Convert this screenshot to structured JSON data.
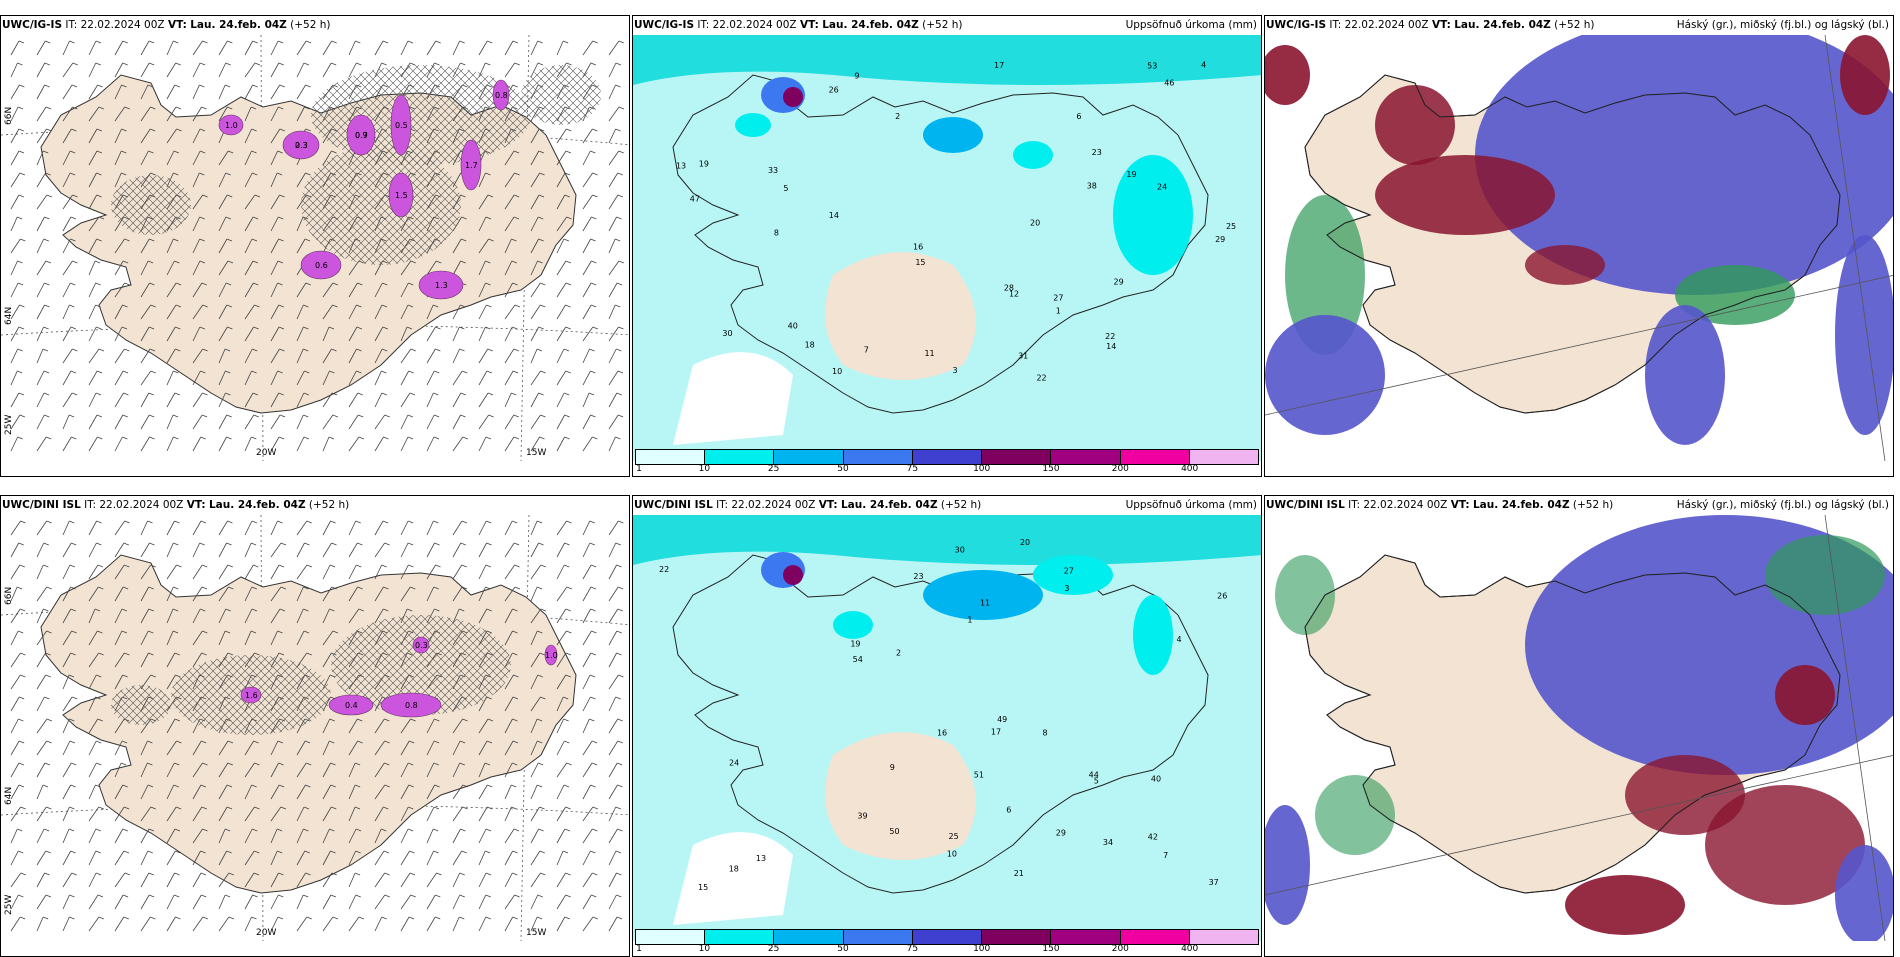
{
  "panels": [
    {
      "id": "p1",
      "model": "UWC/IG-IS",
      "it": "IT: 22.02.2024 00Z",
      "vt_label": "VT:",
      "vt": "Lau. 24.feb. 04Z",
      "lead": "(+52 h)",
      "right_title": ""
    },
    {
      "id": "p2",
      "model": "UWC/IG-IS",
      "it": "IT: 22.02.2024 00Z",
      "vt_label": "VT:",
      "vt": "Lau. 24.feb. 04Z",
      "lead": "(+52 h)",
      "right_title": "Uppsöfnuð úrkoma (mm)"
    },
    {
      "id": "p3",
      "model": "UWC/IG-IS",
      "it": "IT: 22.02.2024 00Z",
      "vt_label": "VT:",
      "vt": "Lau. 24.feb. 04Z",
      "lead": "(+52 h)",
      "right_title": "Háský (gr.), miðský (fj.bl.) og lágský (bl.)"
    },
    {
      "id": "p4",
      "model": "UWC/DINI ISL",
      "it": "IT: 22.02.2024 00Z",
      "vt_label": "VT:",
      "vt": "Lau. 24.feb. 04Z",
      "lead": "(+52 h)",
      "right_title": ""
    },
    {
      "id": "p5",
      "model": "UWC/DINI ISL",
      "it": "IT: 22.02.2024 00Z",
      "vt_label": "VT:",
      "vt": "Lau. 24.feb. 04Z",
      "lead": "(+52 h)",
      "right_title": "Uppsöfnuð úrkoma (mm)"
    },
    {
      "id": "p6",
      "model": "UWC/DINI ISL",
      "it": "IT: 22.02.2024 00Z",
      "vt_label": "VT:",
      "vt": "Lau. 24.feb. 04Z",
      "lead": "(+52 h)",
      "right_title": "Háský (gr.), miðský (fj.bl.) og lágský (bl.)"
    }
  ],
  "axes": {
    "lon_20": "20W",
    "lon_15": "15W",
    "lon_25": "25W",
    "lat_66": "66N",
    "lat_64": "64N"
  },
  "legend": {
    "ticks": [
      "1",
      "10",
      "25",
      "50",
      "75",
      "100",
      "150",
      "200",
      "400"
    ],
    "colors": [
      "#e0ffff",
      "#00eeee",
      "#00b4f0",
      "#3c78f0",
      "#4040d0",
      "#800060",
      "#a00080",
      "#f000a0",
      "#f0b4f0"
    ]
  },
  "colors": {
    "land": "#f2e3d2",
    "precip_light": "#b8f6f6",
    "precip_mid": "#22dddd",
    "cloud_mid": "#5555cc",
    "cloud_low": "#8a1530",
    "cloud_high": "#2f9a5a",
    "snow": "#cc55dd"
  },
  "labels_top": [
    "22",
    "26",
    "40",
    "33",
    "19",
    "31",
    "29",
    "14",
    "15",
    "18",
    "30",
    "13",
    "16",
    "28",
    "38",
    "53",
    "47",
    "46",
    "29",
    "24",
    "22",
    "12",
    "10",
    "14",
    "20",
    "23",
    "8",
    "5",
    "3",
    "2",
    "1",
    "4",
    "6",
    "7",
    "9",
    "11",
    "17",
    "19",
    "25",
    "27"
  ],
  "labels_bottom": [
    "18",
    "40",
    "49",
    "51",
    "23",
    "20",
    "42",
    "27",
    "34",
    "39",
    "37",
    "54",
    "50",
    "30",
    "29",
    "19",
    "44",
    "24",
    "16",
    "26",
    "22",
    "13",
    "10",
    "8",
    "5",
    "3",
    "2",
    "1",
    "4",
    "6",
    "7",
    "9",
    "11",
    "15",
    "17",
    "21",
    "25"
  ],
  "snow_labels_top": [
    "0.3",
    "0.9",
    "1.5",
    "0.6",
    "1.3",
    "1.7",
    "0.8",
    "1.0",
    "0.5",
    "2.3",
    "0.7"
  ],
  "snow_labels_bottom": [
    "0.8",
    "0.4",
    "1.6",
    "0.3",
    "1.0"
  ]
}
